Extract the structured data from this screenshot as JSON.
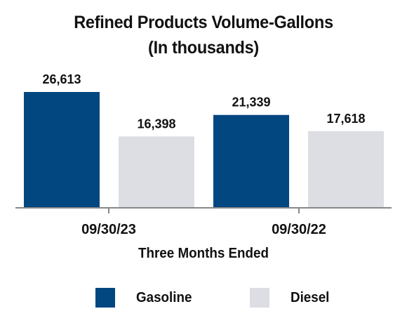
{
  "chart_data": {
    "type": "bar",
    "title": "Refined Products Volume-Gallons",
    "subtitle": "(In thousands)",
    "xlabel": "Three Months Ended",
    "categories": [
      "09/30/23",
      "09/30/22"
    ],
    "series": [
      {
        "name": "Gasoline",
        "color": "#034781",
        "values": [
          26613,
          21339
        ],
        "labels": [
          "26,613",
          "21,339"
        ]
      },
      {
        "name": "Diesel",
        "color": "#dcdee3",
        "values": [
          16398,
          17618
        ],
        "labels": [
          "16,398",
          "17,618"
        ]
      }
    ],
    "ylim": [
      0,
      32000
    ],
    "grid": false,
    "legend_position": "bottom"
  }
}
